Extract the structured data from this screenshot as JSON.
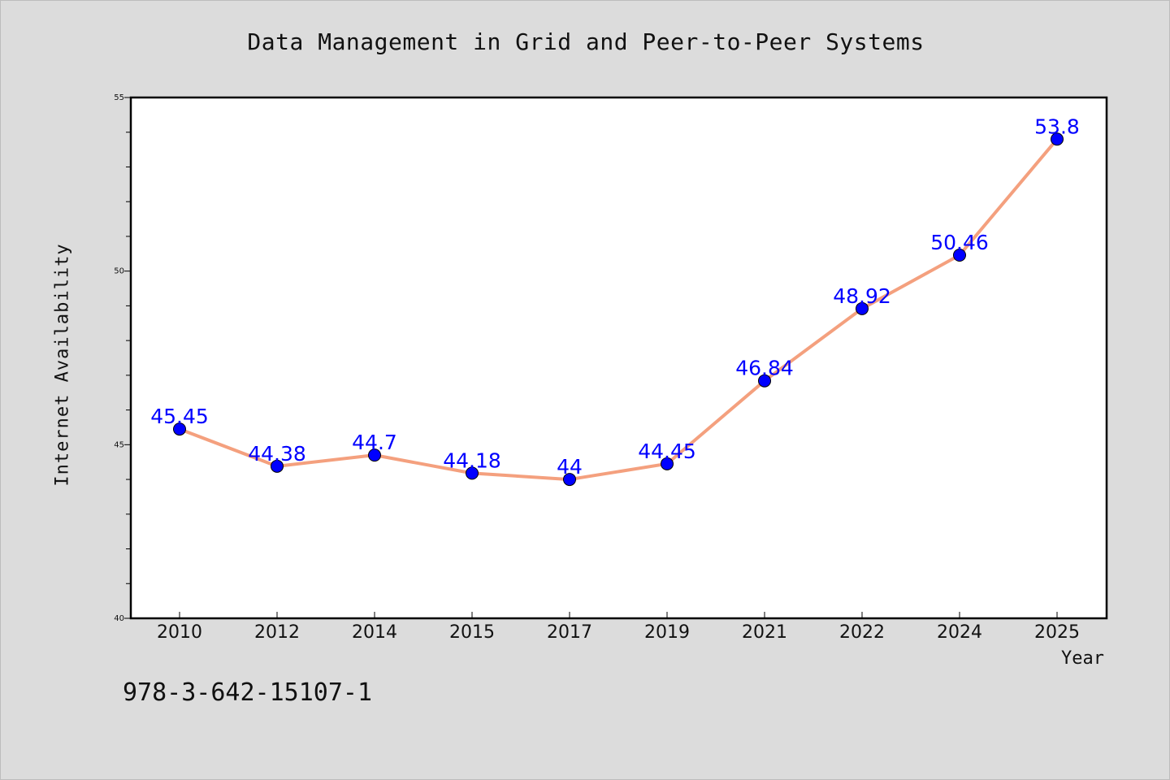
{
  "chart_data": {
    "type": "line",
    "title": "Data Management in Grid and Peer-to-Peer Systems",
    "xlabel": "Year",
    "ylabel": "Internet Availability",
    "categories": [
      "2010",
      "2012",
      "2014",
      "2015",
      "2017",
      "2019",
      "2021",
      "2022",
      "2024",
      "2025"
    ],
    "series": [
      {
        "values": [
          45.45,
          44.38,
          44.7,
          44.18,
          44,
          44.45,
          46.84,
          48.92,
          50.46,
          53.8
        ],
        "data_labels": [
          "45.45",
          "44.38",
          "44.7",
          "44.18",
          "44",
          "44.45",
          "46.84",
          "48.92",
          "50.46",
          "53.8"
        ],
        "line_color": "#f4a07e",
        "marker_color": "#0000ff"
      }
    ],
    "ylim": [
      40,
      55
    ],
    "y_ticks": [
      40,
      45,
      50,
      55
    ],
    "grid": false,
    "legend": "none"
  },
  "footer": {
    "isbn": "978-3-642-15107-1"
  },
  "colors": {
    "background": "#dcdcdc",
    "plot_background": "#ffffff",
    "line": "#f4a07e",
    "marker": "#0000ff",
    "data_label": "#0000ff"
  }
}
